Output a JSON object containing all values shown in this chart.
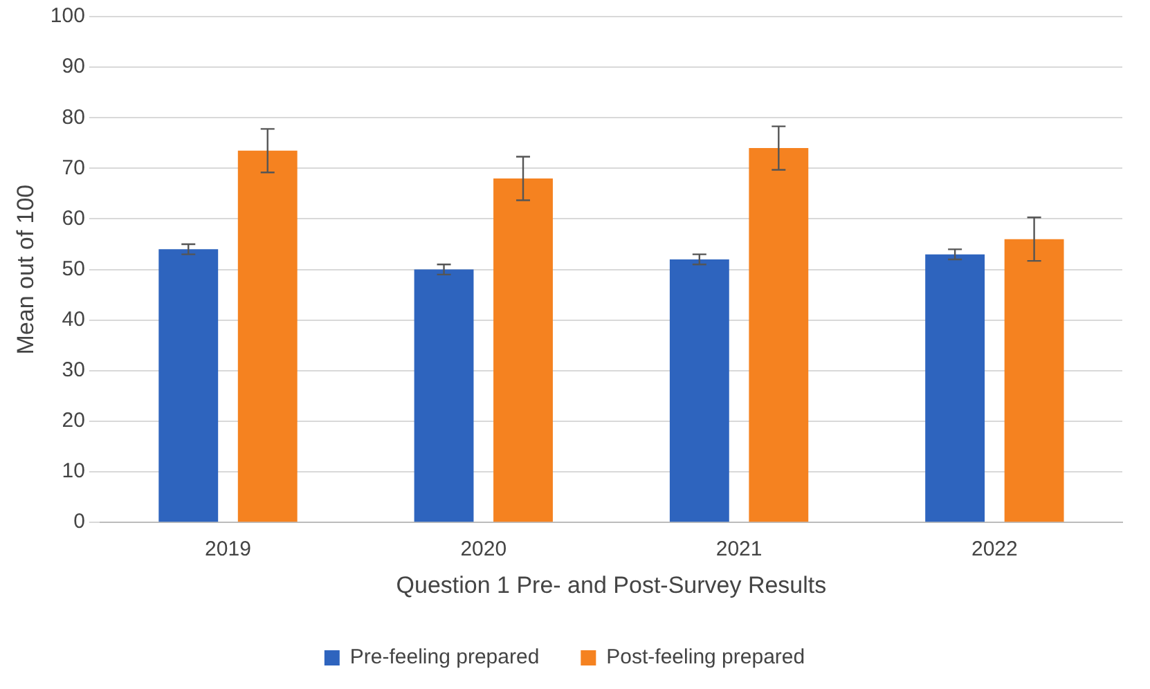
{
  "chart_data": {
    "type": "bar",
    "xlabel": "Question 1 Pre- and Post-Survey Results",
    "ylabel": "Mean out of 100",
    "categories": [
      "2019",
      "2020",
      "2021",
      "2022"
    ],
    "series": [
      {
        "name": "Pre-feeling prepared",
        "color": "#2e64be",
        "values": [
          54,
          50,
          52,
          53
        ],
        "errors": [
          1,
          1,
          1,
          1
        ]
      },
      {
        "name": "Post-feeling prepared",
        "color": "#f58220",
        "values": [
          73.5,
          68,
          74,
          56
        ],
        "errors": [
          4.3,
          4.3,
          4.3,
          4.3
        ]
      }
    ],
    "ylim": [
      0,
      100
    ],
    "yticks": [
      0,
      10,
      20,
      30,
      40,
      50,
      60,
      70,
      80,
      90,
      100
    ],
    "grid": "y",
    "legend": "bottom"
  }
}
